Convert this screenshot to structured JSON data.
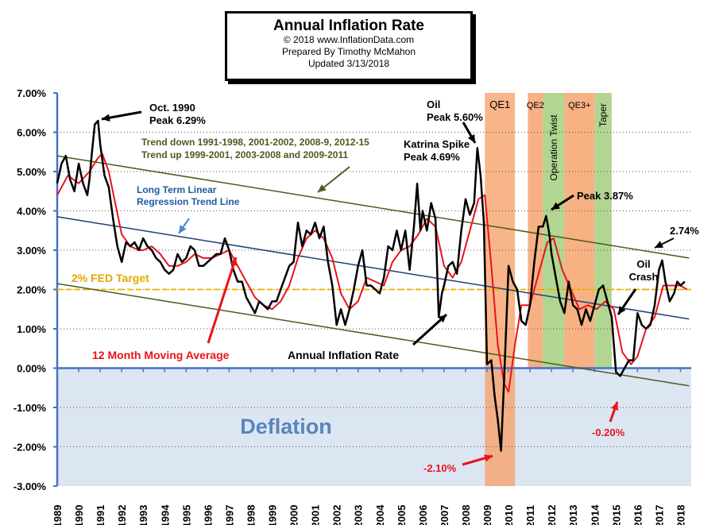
{
  "header": {
    "title": "Annual  Inflation Rate",
    "copyright": "© 2018  www.InflationData.com",
    "prepared_by": "Prepared  By Timothy McMahon",
    "updated": "Updated   3/13/2018"
  },
  "colors": {
    "inflation": "#000000",
    "moving_average": "#e8141b",
    "trend_lines": "#4b5b1e",
    "regression": "#1f3e78",
    "fed_target": "#f5b800",
    "deflation_fill": "#dce6f2",
    "qe_band": "#f6a36d",
    "twist_band": "#a5cf7e",
    "grid": "#000000"
  },
  "chart_data": {
    "type": "line",
    "title": "Annual  Inflation Rate",
    "y_axis": {
      "min": -3.0,
      "max": 7.0,
      "step": 1.0,
      "format": "percent_2dp"
    },
    "x_axis": {
      "min": 1989.0,
      "max": 2018.5
    },
    "x_tick_labels": [
      "1989",
      "1990",
      "1991",
      "1992",
      "1993",
      "1994",
      "1995",
      "1996",
      "1997",
      "1998",
      "1999",
      "2000",
      "2001",
      "2002",
      "2003",
      "2004",
      "2005",
      "2006",
      "2007",
      "2008",
      "2009",
      "2010",
      "2011",
      "2012",
      "2013",
      "2014",
      "2015",
      "2016",
      "2017",
      "2018"
    ],
    "y_tick_labels": [
      "7.00%",
      "6.00%",
      "5.00%",
      "4.00%",
      "3.00%",
      "2.00%",
      "1.00%",
      "0.00%",
      "-1.00%",
      "-2.00%",
      "-3.00%"
    ],
    "grid": "horizontal dotted",
    "series": [
      {
        "name": "Annual Inflation Rate",
        "points": [
          [
            1989.0,
            4.7
          ],
          [
            1989.2,
            5.2
          ],
          [
            1989.4,
            5.4
          ],
          [
            1989.6,
            4.8
          ],
          [
            1989.8,
            4.5
          ],
          [
            1990.0,
            5.2
          ],
          [
            1990.2,
            4.7
          ],
          [
            1990.4,
            4.4
          ],
          [
            1990.5,
            4.8
          ],
          [
            1990.6,
            5.4
          ],
          [
            1990.75,
            6.2
          ],
          [
            1990.9,
            6.29
          ],
          [
            1991.0,
            5.7
          ],
          [
            1991.2,
            4.9
          ],
          [
            1991.4,
            4.6
          ],
          [
            1991.6,
            3.8
          ],
          [
            1991.8,
            3.1
          ],
          [
            1992.0,
            2.7
          ],
          [
            1992.2,
            3.2
          ],
          [
            1992.4,
            3.1
          ],
          [
            1992.6,
            3.2
          ],
          [
            1992.8,
            3.0
          ],
          [
            1993.0,
            3.3
          ],
          [
            1993.2,
            3.1
          ],
          [
            1993.4,
            3.0
          ],
          [
            1993.6,
            2.8
          ],
          [
            1993.8,
            2.7
          ],
          [
            1994.0,
            2.5
          ],
          [
            1994.2,
            2.4
          ],
          [
            1994.4,
            2.5
          ],
          [
            1994.6,
            2.9
          ],
          [
            1994.8,
            2.7
          ],
          [
            1995.0,
            2.8
          ],
          [
            1995.2,
            3.1
          ],
          [
            1995.4,
            3.0
          ],
          [
            1995.6,
            2.6
          ],
          [
            1995.8,
            2.6
          ],
          [
            1996.0,
            2.7
          ],
          [
            1996.2,
            2.8
          ],
          [
            1996.4,
            2.9
          ],
          [
            1996.6,
            2.9
          ],
          [
            1996.8,
            3.3
          ],
          [
            1997.0,
            3.0
          ],
          [
            1997.2,
            2.5
          ],
          [
            1997.4,
            2.2
          ],
          [
            1997.6,
            2.2
          ],
          [
            1997.8,
            1.8
          ],
          [
            1998.0,
            1.6
          ],
          [
            1998.2,
            1.4
          ],
          [
            1998.4,
            1.7
          ],
          [
            1998.6,
            1.6
          ],
          [
            1998.8,
            1.5
          ],
          [
            1999.0,
            1.7
          ],
          [
            1999.2,
            1.7
          ],
          [
            1999.4,
            2.0
          ],
          [
            1999.6,
            2.3
          ],
          [
            1999.8,
            2.6
          ],
          [
            2000.0,
            2.7
          ],
          [
            2000.2,
            3.7
          ],
          [
            2000.4,
            3.1
          ],
          [
            2000.6,
            3.5
          ],
          [
            2000.8,
            3.4
          ],
          [
            2001.0,
            3.7
          ],
          [
            2001.2,
            3.3
          ],
          [
            2001.4,
            3.6
          ],
          [
            2001.6,
            2.7
          ],
          [
            2001.8,
            2.1
          ],
          [
            2002.0,
            1.1
          ],
          [
            2002.2,
            1.5
          ],
          [
            2002.4,
            1.1
          ],
          [
            2002.6,
            1.5
          ],
          [
            2002.8,
            2.0
          ],
          [
            2003.0,
            2.6
          ],
          [
            2003.2,
            3.0
          ],
          [
            2003.4,
            2.1
          ],
          [
            2003.6,
            2.1
          ],
          [
            2003.8,
            2.0
          ],
          [
            2004.0,
            1.9
          ],
          [
            2004.2,
            2.3
          ],
          [
            2004.4,
            3.1
          ],
          [
            2004.6,
            3.0
          ],
          [
            2004.8,
            3.5
          ],
          [
            2005.0,
            3.0
          ],
          [
            2005.2,
            3.5
          ],
          [
            2005.4,
            2.5
          ],
          [
            2005.6,
            3.6
          ],
          [
            2005.75,
            4.69
          ],
          [
            2005.9,
            3.5
          ],
          [
            2006.0,
            4.0
          ],
          [
            2006.2,
            3.5
          ],
          [
            2006.4,
            4.2
          ],
          [
            2006.6,
            3.8
          ],
          [
            2006.75,
            1.3
          ],
          [
            2006.9,
            1.9
          ],
          [
            2007.0,
            2.1
          ],
          [
            2007.2,
            2.6
          ],
          [
            2007.4,
            2.7
          ],
          [
            2007.6,
            2.4
          ],
          [
            2007.8,
            3.5
          ],
          [
            2008.0,
            4.3
          ],
          [
            2008.2,
            3.9
          ],
          [
            2008.4,
            4.2
          ],
          [
            2008.55,
            5.6
          ],
          [
            2008.7,
            4.9
          ],
          [
            2008.85,
            3.7
          ],
          [
            2009.0,
            0.1
          ],
          [
            2009.2,
            0.2
          ],
          [
            2009.35,
            -0.7
          ],
          [
            2009.5,
            -1.3
          ],
          [
            2009.65,
            -2.1
          ],
          [
            2009.8,
            -0.2
          ],
          [
            2010.0,
            2.6
          ],
          [
            2010.2,
            2.2
          ],
          [
            2010.4,
            2.0
          ],
          [
            2010.6,
            1.2
          ],
          [
            2010.8,
            1.1
          ],
          [
            2011.0,
            1.6
          ],
          [
            2011.2,
            2.7
          ],
          [
            2011.4,
            3.6
          ],
          [
            2011.6,
            3.6
          ],
          [
            2011.75,
            3.87
          ],
          [
            2011.9,
            3.4
          ],
          [
            2012.0,
            2.9
          ],
          [
            2012.2,
            2.3
          ],
          [
            2012.4,
            1.7
          ],
          [
            2012.6,
            1.4
          ],
          [
            2012.8,
            2.2
          ],
          [
            2013.0,
            1.6
          ],
          [
            2013.2,
            1.5
          ],
          [
            2013.4,
            1.1
          ],
          [
            2013.6,
            1.5
          ],
          [
            2013.8,
            1.2
          ],
          [
            2014.0,
            1.6
          ],
          [
            2014.2,
            2.0
          ],
          [
            2014.4,
            2.1
          ],
          [
            2014.6,
            1.7
          ],
          [
            2014.8,
            1.3
          ],
          [
            2015.0,
            -0.1
          ],
          [
            2015.2,
            -0.2
          ],
          [
            2015.4,
            0.0
          ],
          [
            2015.6,
            0.2
          ],
          [
            2015.8,
            0.2
          ],
          [
            2016.0,
            1.4
          ],
          [
            2016.2,
            1.1
          ],
          [
            2016.4,
            1.0
          ],
          [
            2016.6,
            1.1
          ],
          [
            2016.8,
            1.6
          ],
          [
            2017.0,
            2.5
          ],
          [
            2017.15,
            2.74
          ],
          [
            2017.3,
            2.2
          ],
          [
            2017.5,
            1.7
          ],
          [
            2017.7,
            1.9
          ],
          [
            2017.85,
            2.2
          ],
          [
            2018.0,
            2.1
          ],
          [
            2018.2,
            2.2
          ]
        ]
      },
      {
        "name": "12 Month Moving Average",
        "points": [
          [
            1989.0,
            4.4
          ],
          [
            1989.5,
            4.9
          ],
          [
            1990.0,
            4.7
          ],
          [
            1990.5,
            5.0
          ],
          [
            1990.9,
            5.35
          ],
          [
            1991.1,
            5.45
          ],
          [
            1991.4,
            5.0
          ],
          [
            1991.7,
            4.2
          ],
          [
            1992.0,
            3.4
          ],
          [
            1992.4,
            3.1
          ],
          [
            1992.8,
            3.0
          ],
          [
            1993.0,
            3.0
          ],
          [
            1993.4,
            3.1
          ],
          [
            1993.8,
            2.9
          ],
          [
            1994.2,
            2.6
          ],
          [
            1994.6,
            2.6
          ],
          [
            1995.0,
            2.7
          ],
          [
            1995.4,
            2.9
          ],
          [
            1995.8,
            2.8
          ],
          [
            1996.2,
            2.8
          ],
          [
            1996.6,
            2.9
          ],
          [
            1997.0,
            3.0
          ],
          [
            1997.4,
            2.6
          ],
          [
            1997.8,
            2.2
          ],
          [
            1998.2,
            1.8
          ],
          [
            1998.6,
            1.6
          ],
          [
            1999.0,
            1.5
          ],
          [
            1999.4,
            1.7
          ],
          [
            1999.8,
            2.1
          ],
          [
            2000.2,
            2.8
          ],
          [
            2000.6,
            3.3
          ],
          [
            2001.0,
            3.5
          ],
          [
            2001.4,
            3.3
          ],
          [
            2001.8,
            2.8
          ],
          [
            2002.2,
            1.9
          ],
          [
            2002.6,
            1.5
          ],
          [
            2003.0,
            1.7
          ],
          [
            2003.4,
            2.3
          ],
          [
            2003.8,
            2.2
          ],
          [
            2004.2,
            2.1
          ],
          [
            2004.6,
            2.7
          ],
          [
            2005.0,
            3.0
          ],
          [
            2005.4,
            3.1
          ],
          [
            2005.8,
            3.4
          ],
          [
            2006.2,
            3.8
          ],
          [
            2006.6,
            3.6
          ],
          [
            2007.0,
            2.6
          ],
          [
            2007.4,
            2.3
          ],
          [
            2007.8,
            2.7
          ],
          [
            2008.2,
            3.5
          ],
          [
            2008.6,
            4.3
          ],
          [
            2008.9,
            4.4
          ],
          [
            2009.2,
            2.6
          ],
          [
            2009.5,
            0.6
          ],
          [
            2009.8,
            -0.4
          ],
          [
            2010.0,
            -0.6
          ],
          [
            2010.3,
            0.6
          ],
          [
            2010.6,
            1.6
          ],
          [
            2011.0,
            1.6
          ],
          [
            2011.4,
            2.4
          ],
          [
            2011.8,
            3.2
          ],
          [
            2012.1,
            3.3
          ],
          [
            2012.5,
            2.5
          ],
          [
            2012.9,
            2.0
          ],
          [
            2013.3,
            1.5
          ],
          [
            2013.7,
            1.6
          ],
          [
            2014.1,
            1.5
          ],
          [
            2014.5,
            1.7
          ],
          [
            2014.9,
            1.5
          ],
          [
            2015.3,
            0.4
          ],
          [
            2015.7,
            0.1
          ],
          [
            2016.0,
            0.3
          ],
          [
            2016.4,
            1.0
          ],
          [
            2016.8,
            1.3
          ],
          [
            2017.2,
            2.1
          ],
          [
            2017.6,
            2.1
          ],
          [
            2018.0,
            2.1
          ],
          [
            2018.3,
            2.0
          ]
        ]
      },
      {
        "name": "Long Term Linear Regression Trend Line",
        "points": [
          [
            1989.0,
            3.85
          ],
          [
            2018.4,
            1.25
          ]
        ]
      },
      {
        "name": "Trend upper",
        "points": [
          [
            1989.0,
            5.4
          ],
          [
            2018.4,
            2.8
          ]
        ]
      },
      {
        "name": "Trend lower",
        "points": [
          [
            1989.0,
            2.15
          ],
          [
            2018.4,
            -0.45
          ]
        ]
      },
      {
        "name": "2% FED Target",
        "points": [
          [
            1989.0,
            2.0
          ],
          [
            2018.5,
            2.0
          ]
        ]
      }
    ],
    "bands": [
      {
        "label": "QE1",
        "x0": 2008.9,
        "x1": 2010.3,
        "y0": -3.0,
        "y1": 7.0,
        "color": "qe_band"
      },
      {
        "label": "QE2",
        "x0": 2010.9,
        "x1": 2011.6,
        "y0": 0.0,
        "y1": 7.0,
        "color": "qe_band"
      },
      {
        "label": "Operation Twist",
        "x0": 2011.6,
        "x1": 2012.6,
        "y0": 0.0,
        "y1": 7.0,
        "color": "twist_band"
      },
      {
        "label": "QE3+",
        "x0": 2012.6,
        "x1": 2014.0,
        "y0": 0.0,
        "y1": 7.0,
        "color": "qe_band"
      },
      {
        "label": "Taper",
        "x0": 2014.0,
        "x1": 2014.8,
        "y0": 0.0,
        "y1": 7.0,
        "color": "twist_band"
      }
    ],
    "deflation_label": "Deflation",
    "annotations": [
      {
        "text": "Oct. 1990\nPeak 6.29%",
        "color": "#000000"
      },
      {
        "text": "Trend down 1991-1998,  2001-2002,  2008-9,  2012-15\nTrend  up  1999-2001,  2003-2008  and 2009-2011",
        "color": "#4b5b1e"
      },
      {
        "text": "Long Term Linear\nRegression  Trend Line",
        "color": "#1f5aa0"
      },
      {
        "text": "2% FED Target",
        "color": "#e6a800"
      },
      {
        "text": "12 Month Moving Average",
        "color": "#e8141b"
      },
      {
        "text": "Annual Inflation Rate",
        "color": "#000000"
      },
      {
        "text": "Oil\nPeak 5.60%",
        "color": "#000000"
      },
      {
        "text": "Katrina Spike\nPeak 4.69%",
        "color": "#000000"
      },
      {
        "text": "Peak 3.87%",
        "color": "#000000"
      },
      {
        "text": "2.74%",
        "color": "#000000"
      },
      {
        "text": "Oil\nCrash",
        "color": "#000000"
      },
      {
        "text": "-0.20%",
        "color": "#e8141b"
      },
      {
        "text": "-2.10%",
        "color": "#e8141b"
      }
    ]
  }
}
